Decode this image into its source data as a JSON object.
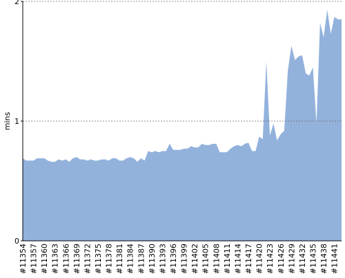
{
  "chart_data": {
    "type": "area",
    "y_label": "mins",
    "color": "#92b2dc",
    "grid": true,
    "ylim": [
      0,
      2
    ],
    "yticks": [
      0,
      1,
      2
    ],
    "categories": [
      "#11354",
      null,
      null,
      "#11357",
      null,
      null,
      "#11360",
      null,
      null,
      "#11363",
      null,
      null,
      "#11366",
      null,
      null,
      "#11369",
      null,
      null,
      "#11372",
      null,
      null,
      "#11375",
      null,
      null,
      "#11378",
      null,
      null,
      "#11381",
      null,
      null,
      "#11384",
      null,
      null,
      "#11387",
      null,
      null,
      "#11390",
      null,
      null,
      "#11393",
      null,
      null,
      "#11396",
      null,
      null,
      "#11399",
      null,
      null,
      "#11402",
      null,
      null,
      "#11405",
      null,
      null,
      "#11408",
      null,
      null,
      "#11411",
      null,
      null,
      "#11414",
      null,
      null,
      "#11417",
      null,
      null,
      "#11420",
      null,
      null,
      "#11423",
      null,
      null,
      "#11426",
      null,
      null,
      "#11429",
      null,
      null,
      "#11432",
      null,
      null,
      "#11435",
      null,
      null,
      "#11438",
      null,
      null,
      "#11441",
      null,
      null
    ],
    "values": [
      0.69,
      0.67,
      0.67,
      0.67,
      0.69,
      0.69,
      0.69,
      0.67,
      0.66,
      0.66,
      0.68,
      0.67,
      0.68,
      0.66,
      0.69,
      0.7,
      0.68,
      0.68,
      0.67,
      0.68,
      0.67,
      0.67,
      0.68,
      0.68,
      0.67,
      0.69,
      0.69,
      0.67,
      0.67,
      0.69,
      0.7,
      0.69,
      0.66,
      0.69,
      0.67,
      0.75,
      0.74,
      0.75,
      0.74,
      0.75,
      0.75,
      0.81,
      0.76,
      0.76,
      0.76,
      0.77,
      0.77,
      0.79,
      0.78,
      0.78,
      0.81,
      0.8,
      0.8,
      0.81,
      0.81,
      0.74,
      0.74,
      0.74,
      0.77,
      0.79,
      0.8,
      0.79,
      0.81,
      0.82,
      0.75,
      0.75,
      0.87,
      0.85,
      1.5,
      0.88,
      0.98,
      0.84,
      0.89,
      0.92,
      1.42,
      1.63,
      1.51,
      1.54,
      1.55,
      1.4,
      1.38,
      1.45,
      0.98,
      1.82,
      1.7,
      1.93,
      1.73,
      1.87,
      1.85,
      1.85
    ]
  }
}
